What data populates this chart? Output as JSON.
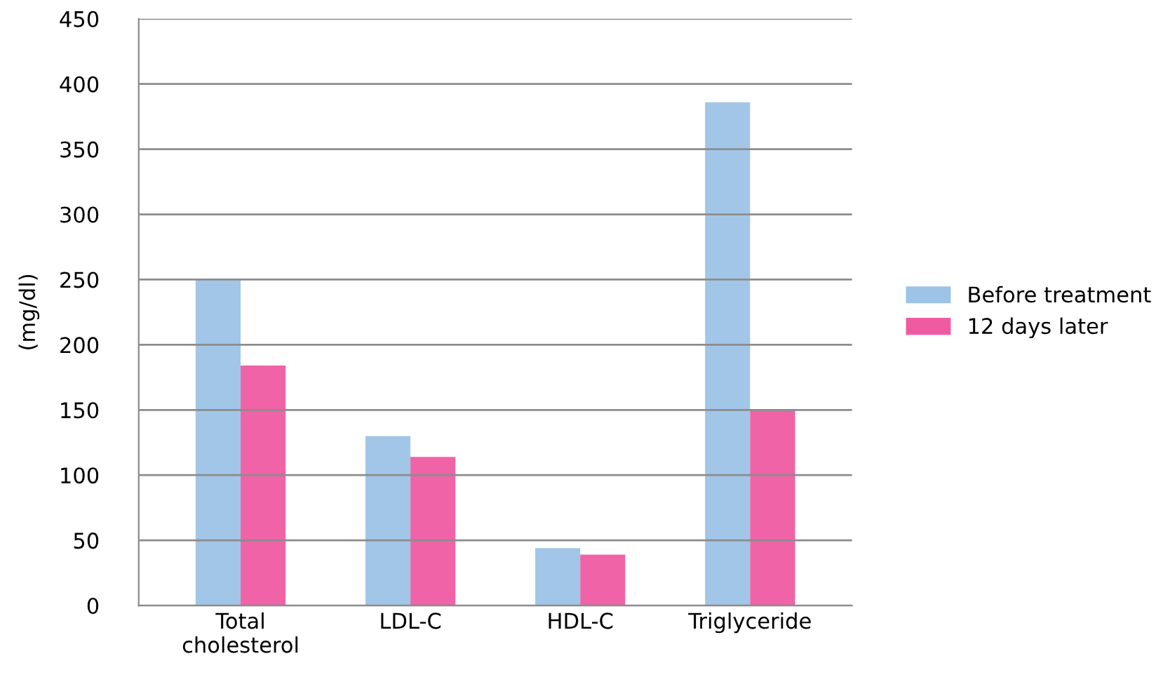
{
  "chart_data": {
    "type": "bar",
    "ylabel": "(mg/dl)",
    "categories": [
      "Total\ncholesterol",
      "LDL-C",
      "HDL-C",
      "Triglyceride"
    ],
    "series": [
      {
        "name": "Before treatment",
        "color": "#9dc3e6",
        "values": [
          250,
          130,
          44,
          386
        ]
      },
      {
        "name": "12 days later",
        "color": "#ef5ba1",
        "values": [
          184,
          114,
          39,
          150
        ]
      }
    ],
    "ylim": [
      0,
      450
    ],
    "yticks": [
      0,
      50,
      100,
      150,
      200,
      250,
      300,
      350,
      400,
      450
    ],
    "grid": "y",
    "legend": "right"
  }
}
